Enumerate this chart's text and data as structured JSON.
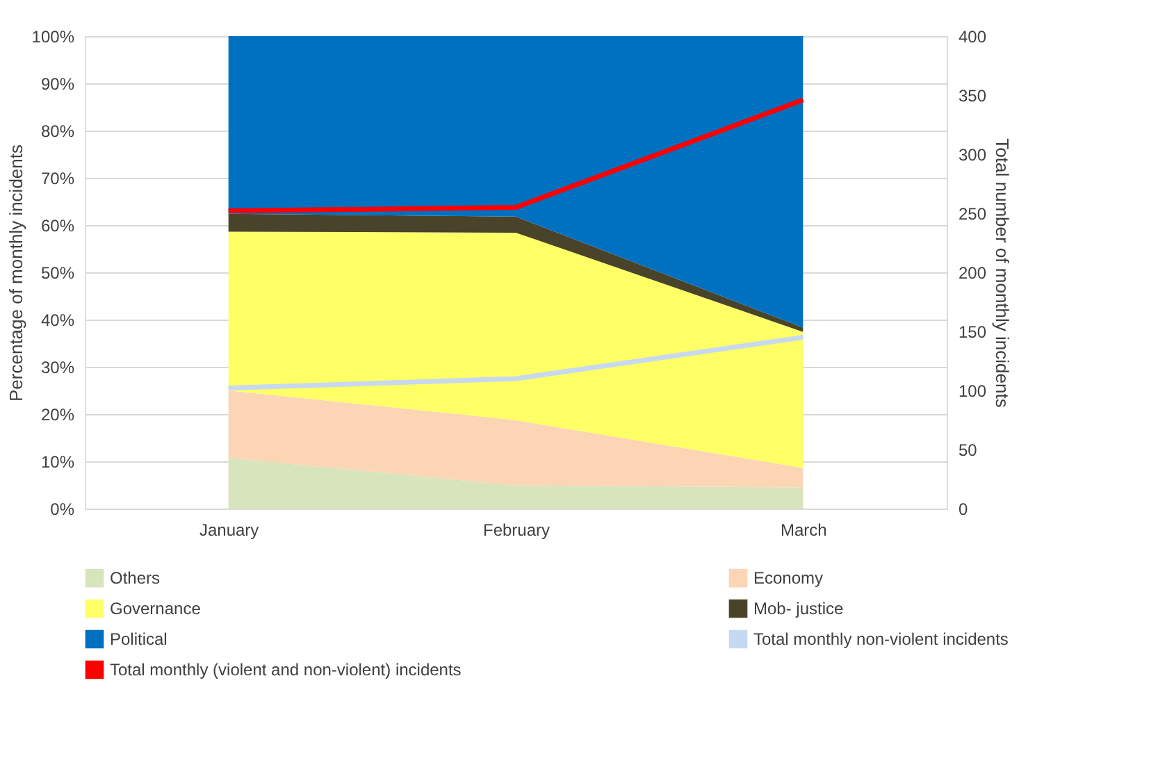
{
  "chart_data": {
    "type": "area",
    "stacked": true,
    "ylabel": "Percentage of monthly incidents",
    "y2label": "Total number of monthly incidents",
    "categories": [
      "January",
      "February",
      "March"
    ],
    "series": [
      {
        "name": "Others",
        "color": "#d8e4bc",
        "values": [
          10.7,
          4.9,
          4.5
        ]
      },
      {
        "name": "Economy",
        "color": "#fcd5b5",
        "values": [
          14.3,
          13.8,
          4.1
        ]
      },
      {
        "name": "Governance",
        "color": "#ffff66",
        "values": [
          33.6,
          39.7,
          28.8
        ]
      },
      {
        "name": "Mob- justice",
        "color": "#494429",
        "values": [
          3.8,
          3.4,
          0.9
        ]
      },
      {
        "name": "Political",
        "color": "#0070c0",
        "values": [
          37.6,
          38.2,
          61.7
        ]
      },
      {
        "name": "Total monthly non-violent incidents",
        "type": "line",
        "axis": "y2",
        "color": "#c6d9f0",
        "values": [
          102,
          110,
          145
        ]
      },
      {
        "name": "Total monthly (violent and non-violent) incidents",
        "type": "line",
        "axis": "y2",
        "color": "#ff0000",
        "values": [
          252,
          255,
          346
        ]
      }
    ],
    "ylim": [
      0,
      100
    ],
    "yticks": [
      {
        "value": 0,
        "label": "0%"
      },
      {
        "value": 10,
        "label": "10%"
      },
      {
        "value": 20,
        "label": "20%"
      },
      {
        "value": 30,
        "label": "30%"
      },
      {
        "value": 40,
        "label": "40%"
      },
      {
        "value": 50,
        "label": "50%"
      },
      {
        "value": 60,
        "label": "60%"
      },
      {
        "value": 70,
        "label": "70%"
      },
      {
        "value": 80,
        "label": "80%"
      },
      {
        "value": 90,
        "label": "90%"
      },
      {
        "value": 100,
        "label": "100%"
      }
    ],
    "y2lim": [
      0,
      400
    ],
    "y2ticks": [
      0,
      50,
      100,
      150,
      200,
      250,
      300,
      350,
      400
    ],
    "grid": "y",
    "legend": "bottom",
    "line_style": "solid"
  }
}
